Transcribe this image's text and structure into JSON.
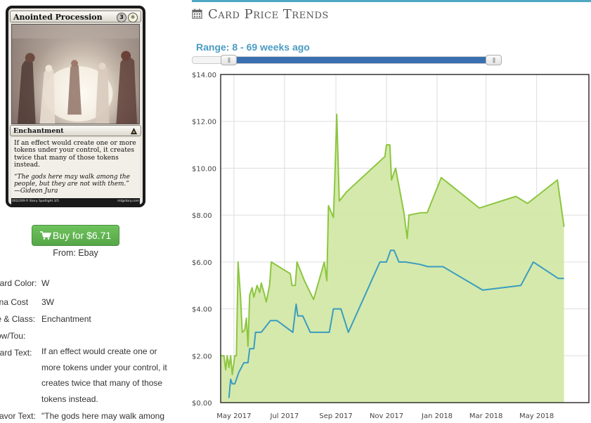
{
  "card": {
    "name": "Anointed Procession",
    "cost": {
      "generic": "3",
      "white_symbol": "white-mana-icon"
    },
    "type_line": "Enchantment",
    "rules_text": "If an effect would create one or more tokens under your control, it creates twice that many of those tokens instead.",
    "flavor_text": "“The gods here may walk among the people, but they are not with them.”",
    "flavor_attribution": "—Gideon Jura",
    "footer_left": "002/269 R  Story Spotlight 3/5",
    "footer_right": "mtgstory.com"
  },
  "buy": {
    "label": "Buy for $6.71",
    "icon": "shopping-cart-icon",
    "from": "From: Ebay"
  },
  "info": [
    {
      "label": "Card Color:",
      "value": "W"
    },
    {
      "label": "Mana Cost",
      "value": "3W"
    },
    {
      "label": "Type & Class:",
      "value": "Enchantment"
    },
    {
      "label": "Pow/Tou:",
      "value": ""
    },
    {
      "label": "Card Text:",
      "value": "If an effect would create one or more tokens under your control, it creates twice that many of those tokens instead."
    },
    {
      "label": "Flavor Text:",
      "value": "\"The gods here may walk among"
    }
  ],
  "section": {
    "title": "Card Price Trends",
    "icon": "calendar-icon"
  },
  "range": {
    "label": "Range: 8 - 69 weeks ago",
    "start_week_ago": 69,
    "end_week_ago": 8
  },
  "colors": {
    "accent": "#4ea8c4",
    "foil_line": "#8cc63f",
    "foil_fill": "#d3e8a8",
    "normal_line": "#3a9dbf",
    "button": "#5cb85c"
  },
  "chart_data": {
    "type": "area",
    "title": "",
    "xlabel": "",
    "ylabel": "",
    "ylim": [
      0,
      14
    ],
    "y_ticks": [
      "$0.00",
      "$2.00",
      "$4.00",
      "$6.00",
      "$8.00",
      "$10.00",
      "$12.00",
      "$14.00"
    ],
    "x_ticks": [
      {
        "label": "May 2017",
        "date": "2017-05-01"
      },
      {
        "label": "Jul 2017",
        "date": "2017-07-01"
      },
      {
        "label": "Sep 2017",
        "date": "2017-09-01"
      },
      {
        "label": "Nov 2017",
        "date": "2017-11-01"
      },
      {
        "label": "Jan 2018",
        "date": "2018-01-01"
      },
      {
        "label": "Mar 2018",
        "date": "2018-03-01"
      },
      {
        "label": "May 2018",
        "date": "2018-05-01"
      }
    ],
    "xlim": [
      "2017-04-15",
      "2018-07-03"
    ],
    "grid": true,
    "series": [
      {
        "name": "",
        "kind": "area",
        "points": [
          [
            "2017-04-15",
            2.0
          ],
          [
            "2017-04-19",
            2.0
          ],
          [
            "2017-04-21",
            1.4
          ],
          [
            "2017-04-23",
            2.0
          ],
          [
            "2017-04-25",
            1.5
          ],
          [
            "2017-04-27",
            2.0
          ],
          [
            "2017-04-29",
            1.2
          ],
          [
            "2017-05-02",
            2.0
          ],
          [
            "2017-05-04",
            2.0
          ],
          [
            "2017-05-06",
            6.0
          ],
          [
            "2017-05-09",
            4.5
          ],
          [
            "2017-05-11",
            3.0
          ],
          [
            "2017-05-14",
            3.1
          ],
          [
            "2017-05-16",
            3.6
          ],
          [
            "2017-05-18",
            2.4
          ],
          [
            "2017-05-20",
            4.6
          ],
          [
            "2017-05-23",
            4.9
          ],
          [
            "2017-05-25",
            4.5
          ],
          [
            "2017-05-29",
            5.0
          ],
          [
            "2017-06-01",
            4.7
          ],
          [
            "2017-06-03",
            5.1
          ],
          [
            "2017-06-07",
            4.6
          ],
          [
            "2017-06-09",
            4.3
          ],
          [
            "2017-06-13",
            5.0
          ],
          [
            "2017-06-15",
            6.0
          ],
          [
            "2017-07-08",
            5.5
          ],
          [
            "2017-07-10",
            5.0
          ],
          [
            "2017-07-14",
            5.0
          ],
          [
            "2017-07-16",
            6.0
          ],
          [
            "2017-07-25",
            5.2
          ],
          [
            "2017-08-05",
            4.4
          ],
          [
            "2017-08-18",
            6.0
          ],
          [
            "2017-08-21",
            5.2
          ],
          [
            "2017-08-23",
            8.4
          ],
          [
            "2017-08-29",
            7.9
          ],
          [
            "2017-08-31",
            10.0
          ],
          [
            "2017-09-02",
            12.3
          ],
          [
            "2017-09-05",
            8.6
          ],
          [
            "2017-09-14",
            9.0
          ],
          [
            "2017-10-30",
            10.5
          ],
          [
            "2017-11-01",
            11.0
          ],
          [
            "2017-11-05",
            11.0
          ],
          [
            "2017-11-07",
            9.5
          ],
          [
            "2017-11-12",
            10.0
          ],
          [
            "2017-11-22",
            8.1
          ],
          [
            "2017-11-26",
            7.0
          ],
          [
            "2017-11-28",
            8.0
          ],
          [
            "2017-12-12",
            8.1
          ],
          [
            "2017-12-20",
            8.1
          ],
          [
            "2018-01-06",
            9.6
          ],
          [
            "2018-02-21",
            8.3
          ],
          [
            "2018-04-06",
            8.8
          ],
          [
            "2018-04-20",
            8.5
          ],
          [
            "2018-05-26",
            9.5
          ],
          [
            "2018-06-03",
            7.5
          ]
        ]
      },
      {
        "name": "",
        "kind": "line",
        "points": [
          [
            "2017-04-25",
            0.2
          ],
          [
            "2017-04-27",
            1.0
          ],
          [
            "2017-04-29",
            0.8
          ],
          [
            "2017-05-02",
            0.8
          ],
          [
            "2017-05-07",
            1.3
          ],
          [
            "2017-05-13",
            1.7
          ],
          [
            "2017-05-18",
            1.7
          ],
          [
            "2017-05-20",
            2.3
          ],
          [
            "2017-05-25",
            2.3
          ],
          [
            "2017-05-27",
            3.0
          ],
          [
            "2017-06-03",
            3.0
          ],
          [
            "2017-06-14",
            3.5
          ],
          [
            "2017-06-22",
            3.5
          ],
          [
            "2017-07-11",
            3.0
          ],
          [
            "2017-07-15",
            4.2
          ],
          [
            "2017-07-17",
            3.7
          ],
          [
            "2017-07-23",
            3.7
          ],
          [
            "2017-08-01",
            3.0
          ],
          [
            "2017-08-24",
            3.0
          ],
          [
            "2017-08-29",
            4.0
          ],
          [
            "2017-09-07",
            4.0
          ],
          [
            "2017-09-16",
            3.0
          ],
          [
            "2017-10-24",
            6.0
          ],
          [
            "2017-11-01",
            6.0
          ],
          [
            "2017-11-06",
            6.5
          ],
          [
            "2017-11-10",
            6.5
          ],
          [
            "2017-11-16",
            6.0
          ],
          [
            "2017-11-24",
            6.0
          ],
          [
            "2017-12-11",
            5.9
          ],
          [
            "2017-12-21",
            5.8
          ],
          [
            "2018-01-08",
            5.8
          ],
          [
            "2018-02-25",
            4.8
          ],
          [
            "2018-04-12",
            5.0
          ],
          [
            "2018-04-27",
            6.0
          ],
          [
            "2018-05-27",
            5.3
          ],
          [
            "2018-06-03",
            5.3
          ]
        ]
      }
    ]
  }
}
